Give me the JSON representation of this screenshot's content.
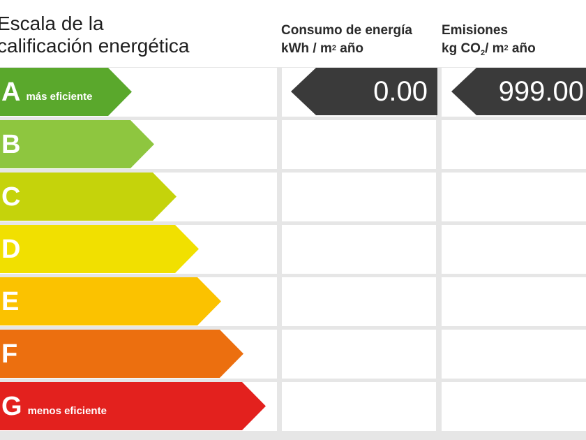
{
  "header": {
    "scale_title_line1": "Escala de la",
    "scale_title_line2": "calificación energética",
    "consumo_title": "Consumo de energía",
    "consumo_unit_prefix": "kWh / m",
    "consumo_unit_sup": "2",
    "consumo_unit_suffix": " año",
    "emisiones_title": "Emisiones",
    "emisiones_unit_prefix": "kg CO",
    "emisiones_unit_sub": "2",
    "emisiones_unit_mid": "/ m",
    "emisiones_unit_sup": "2",
    "emisiones_unit_suffix": " año"
  },
  "grades": [
    {
      "letter": "A",
      "note": "más eficiente",
      "color": "#5aa82c"
    },
    {
      "letter": "B",
      "note": "",
      "color": "#8ec63f"
    },
    {
      "letter": "C",
      "note": "",
      "color": "#c5d30b"
    },
    {
      "letter": "D",
      "note": "",
      "color": "#f1e000"
    },
    {
      "letter": "E",
      "note": "",
      "color": "#fbc200"
    },
    {
      "letter": "F",
      "note": "",
      "color": "#ec6f0f"
    },
    {
      "letter": "G",
      "note": "menos eficiente",
      "color": "#e3211e"
    }
  ],
  "rating": {
    "consumo_grade": "A",
    "consumo_value": "0.00",
    "emisiones_grade": "A",
    "emisiones_value": "999.00",
    "tag_color": "#3a3a3a"
  }
}
